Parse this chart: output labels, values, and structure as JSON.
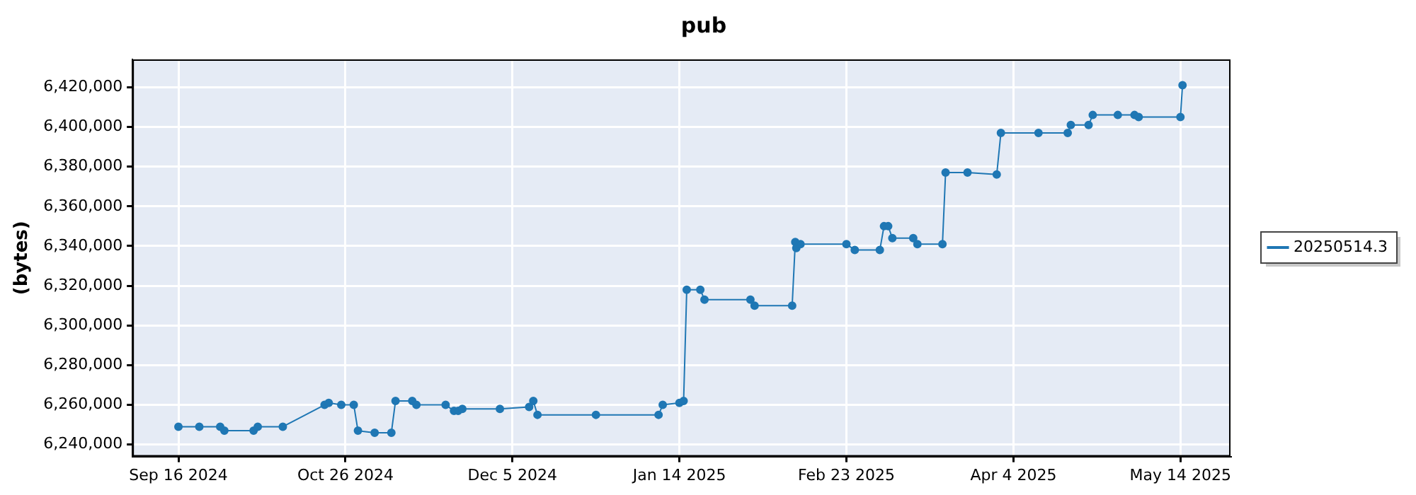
{
  "chart_data": {
    "type": "line",
    "title": "pub",
    "ylabel": "(bytes)",
    "x": [
      "2024-09-16",
      "2024-09-21",
      "2024-09-26",
      "2024-09-27",
      "2024-10-04",
      "2024-10-05",
      "2024-10-11",
      "2024-10-21",
      "2024-10-22",
      "2024-10-25",
      "2024-10-28",
      "2024-10-29",
      "2024-11-02",
      "2024-11-06",
      "2024-11-07",
      "2024-11-11",
      "2024-11-12",
      "2024-11-19",
      "2024-11-21",
      "2024-11-22",
      "2024-11-23",
      "2024-12-02",
      "2024-12-09",
      "2024-12-10",
      "2024-12-11",
      "2024-12-25",
      "2025-01-09",
      "2025-01-10",
      "2025-01-14",
      "2025-01-15",
      "2025-01-15T18:00",
      "2025-01-19",
      "2025-01-20",
      "2025-01-31",
      "2025-02-01",
      "2025-02-10",
      "2025-02-10T18:00",
      "2025-02-11",
      "2025-02-12",
      "2025-02-23",
      "2025-02-25",
      "2025-03-03",
      "2025-03-04",
      "2025-03-05",
      "2025-03-06",
      "2025-03-11",
      "2025-03-12",
      "2025-03-18",
      "2025-03-18T18:00",
      "2025-03-24",
      "2025-03-31",
      "2025-04-01",
      "2025-04-10",
      "2025-04-17",
      "2025-04-17T18:00",
      "2025-04-22",
      "2025-04-23",
      "2025-04-29",
      "2025-05-03",
      "2025-05-04",
      "2025-05-14",
      "2025-05-14T12:00"
    ],
    "series": [
      {
        "name": "20250514.3",
        "color": "#1f77b4",
        "values": [
          6249000,
          6249000,
          6249000,
          6247000,
          6247000,
          6249000,
          6249000,
          6260000,
          6261000,
          6260000,
          6260000,
          6247000,
          6246000,
          6246000,
          6262000,
          6262000,
          6260000,
          6260000,
          6257000,
          6257000,
          6258000,
          6258000,
          6259000,
          6262000,
          6255000,
          6255000,
          6255000,
          6260000,
          6261000,
          6262000,
          6318000,
          6318000,
          6313000,
          6313000,
          6310000,
          6310000,
          6342000,
          6339000,
          6341000,
          6341000,
          6338000,
          6338000,
          6350000,
          6350000,
          6344000,
          6344000,
          6341000,
          6341000,
          6377000,
          6377000,
          6376000,
          6397000,
          6397000,
          6397000,
          6401000,
          6401000,
          6406000,
          6406000,
          6406000,
          6405000,
          6405000,
          6421000
        ]
      }
    ],
    "xlim": [
      "2024-09-05",
      "2025-05-26"
    ],
    "xticks": [
      {
        "value": "2024-09-16",
        "label": "Sep 16 2024"
      },
      {
        "value": "2024-10-26",
        "label": "Oct 26 2024"
      },
      {
        "value": "2024-12-05",
        "label": "Dec 5 2024"
      },
      {
        "value": "2025-01-14",
        "label": "Jan 14 2025"
      },
      {
        "value": "2025-02-23",
        "label": "Feb 23 2025"
      },
      {
        "value": "2025-04-04",
        "label": "Apr 4 2025"
      },
      {
        "value": "2025-05-14",
        "label": "May 14 2025"
      }
    ],
    "ylim": [
      6234000,
      6434000
    ],
    "yticks": [
      {
        "value": 6240000,
        "label": "6,240,000"
      },
      {
        "value": 6260000,
        "label": "6,260,000"
      },
      {
        "value": 6280000,
        "label": "6,280,000"
      },
      {
        "value": 6300000,
        "label": "6,300,000"
      },
      {
        "value": 6320000,
        "label": "6,320,000"
      },
      {
        "value": 6340000,
        "label": "6,340,000"
      },
      {
        "value": 6360000,
        "label": "6,360,000"
      },
      {
        "value": 6380000,
        "label": "6,380,000"
      },
      {
        "value": 6400000,
        "label": "6,400,000"
      },
      {
        "value": 6420000,
        "label": "6,420,000"
      }
    ],
    "grid": true,
    "legend": "right",
    "marker": "circle",
    "line_style": "solid"
  }
}
